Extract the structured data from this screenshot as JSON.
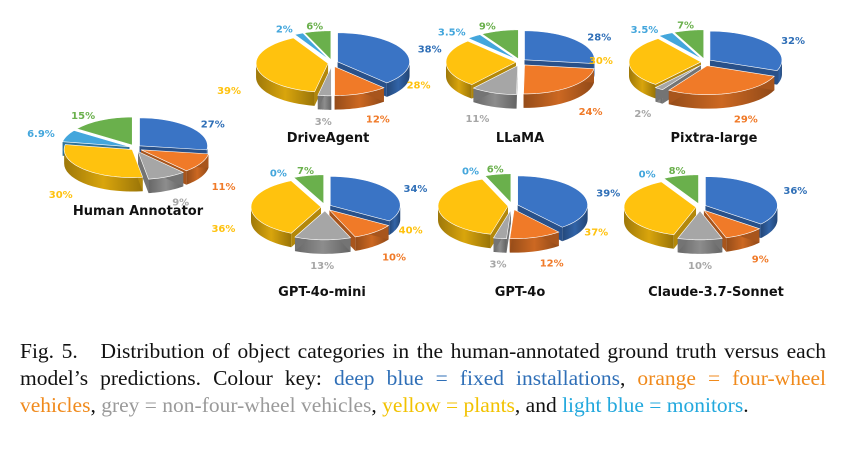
{
  "colors": {
    "deep_blue": "#3a74c5",
    "orange": "#f07a28",
    "grey": "#a6a6a6",
    "yellow": "#ffc20e",
    "light_blue": "#43a6dc",
    "green": "#6ab04c",
    "caption_deep_blue": "#2f6fb7",
    "caption_orange": "#f08a1c",
    "caption_grey": "#9a9a9a",
    "caption_yellow": "#f2c200",
    "caption_light_blue": "#22a8dd"
  },
  "chart_data": [
    {
      "type": "pie",
      "title": "Human Annotator",
      "categories": [
        "fixed installations",
        "four-wheel vehicles",
        "non-four-wheel vehicles",
        "plants",
        "monitors",
        "other"
      ],
      "labels": [
        "27%",
        "11%",
        "9%",
        "30%",
        "6.9%",
        "15%"
      ],
      "values": [
        27,
        11,
        9,
        30,
        6.9,
        15
      ]
    },
    {
      "type": "pie",
      "title": "DriveAgent",
      "categories": [
        "fixed installations",
        "four-wheel vehicles",
        "non-four-wheel vehicles",
        "plants",
        "monitors",
        "other"
      ],
      "labels": [
        "38%",
        "12%",
        "3%",
        "39%",
        "2%",
        "6%"
      ],
      "values": [
        38,
        12,
        3,
        39,
        2,
        6
      ]
    },
    {
      "type": "pie",
      "title": "LLaMA",
      "categories": [
        "fixed installations",
        "four-wheel vehicles",
        "non-four-wheel vehicles",
        "plants",
        "monitors",
        "other"
      ],
      "labels": [
        "28%",
        "24%",
        "11%",
        "28%",
        "3.5%",
        "9%"
      ],
      "values": [
        28,
        24,
        11,
        28,
        3.5,
        9
      ]
    },
    {
      "type": "pie",
      "title": "Pixtra-large",
      "categories": [
        "fixed installations",
        "four-wheel vehicles",
        "non-four-wheel vehicles",
        "plants",
        "monitors",
        "other"
      ],
      "labels": [
        "32%",
        "29%",
        "2%",
        "30%",
        "3.5%",
        "7%"
      ],
      "values": [
        32,
        29,
        2,
        30,
        3.5,
        7
      ]
    },
    {
      "type": "pie",
      "title": "GPT-4o-mini",
      "categories": [
        "fixed installations",
        "four-wheel vehicles",
        "non-four-wheel vehicles",
        "plants",
        "monitors",
        "other"
      ],
      "labels": [
        "34%",
        "10%",
        "13%",
        "36%",
        "0%",
        "7%"
      ],
      "values": [
        34,
        10,
        13,
        36,
        0,
        7
      ]
    },
    {
      "type": "pie",
      "title": "GPT-4o",
      "categories": [
        "fixed installations",
        "four-wheel vehicles",
        "non-four-wheel vehicles",
        "plants",
        "monitors",
        "other"
      ],
      "labels": [
        "39%",
        "12%",
        "3%",
        "40%",
        "0%",
        "6%"
      ],
      "values": [
        39,
        12,
        3,
        40,
        0,
        6
      ]
    },
    {
      "type": "pie",
      "title": "Claude-3.7-Sonnet",
      "categories": [
        "fixed installations",
        "four-wheel vehicles",
        "non-four-wheel vehicles",
        "plants",
        "monitors",
        "other"
      ],
      "labels": [
        "36%",
        "9%",
        "10%",
        "37%",
        "0%",
        "8%"
      ],
      "values": [
        36,
        9,
        10,
        37,
        0,
        8
      ]
    }
  ],
  "caption": {
    "prefix": "Fig. 5.",
    "text": "Distribution of object categories in the human-annotated ground truth versus each model’s predictions. Colour key: ",
    "deep_blue": "deep blue = fixed installations",
    "sep1": ", ",
    "orange": "orange = four-wheel vehicles",
    "sep2": ", ",
    "grey": "grey = non-four-wheel vehicles",
    "sep3": ", ",
    "yellow": "yellow = plants",
    "sep4": ", and ",
    "light_blue": "light blue = monitors",
    "end": "."
  }
}
